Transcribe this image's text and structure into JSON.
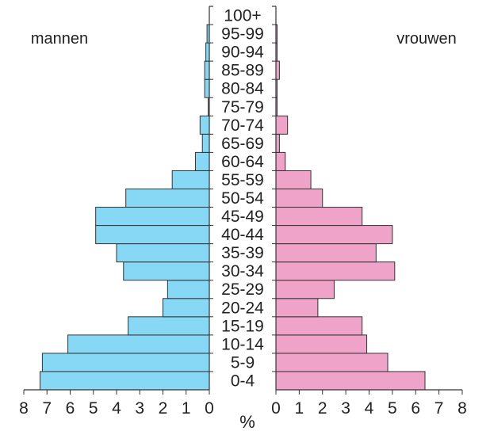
{
  "chart_data": {
    "type": "bar",
    "orientation": "horizontal",
    "subtype": "population-pyramid",
    "categories": [
      "0-4",
      "5-9",
      "10-14",
      "15-19",
      "20-24",
      "25-29",
      "30-34",
      "35-39",
      "40-44",
      "45-49",
      "50-54",
      "55-59",
      "60-64",
      "65-69",
      "70-74",
      "75-79",
      "80-84",
      "85-89",
      "90-94",
      "95-99",
      "100+"
    ],
    "series": [
      {
        "name": "mannen",
        "side": "left",
        "color": "#87d8f5",
        "values": [
          7.3,
          7.2,
          6.1,
          3.5,
          2.0,
          1.8,
          3.7,
          4.0,
          4.9,
          4.9,
          3.6,
          1.6,
          0.6,
          0.3,
          0.4,
          0.05,
          0.2,
          0.2,
          0.15,
          0.1,
          0.0
        ]
      },
      {
        "name": "vrouwen",
        "side": "right",
        "color": "#f0a3c8",
        "values": [
          6.4,
          4.8,
          3.9,
          3.7,
          1.8,
          2.5,
          5.1,
          4.3,
          5.0,
          3.7,
          2.0,
          1.5,
          0.4,
          0.15,
          0.5,
          0.05,
          0.05,
          0.15,
          0.05,
          0.05,
          0.0
        ]
      }
    ],
    "xlabel": "%",
    "xlim": [
      0,
      8
    ],
    "ticks": [
      "0",
      "1",
      "2",
      "3",
      "4",
      "5",
      "6",
      "7",
      "8"
    ],
    "grid": false,
    "legend": "none"
  }
}
